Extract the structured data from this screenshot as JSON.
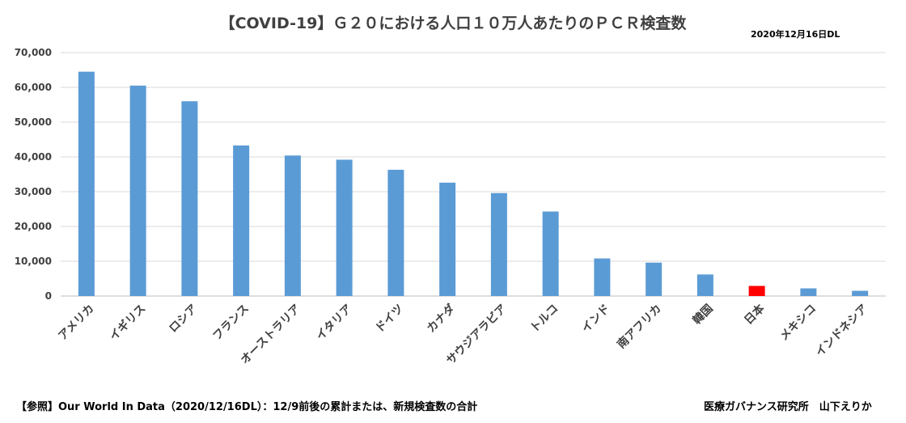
{
  "chart_data": {
    "type": "bar",
    "title": "【COVID-19】Ｇ２０における人口１０万人あたりのＰＣＲ検査数",
    "date_note": "2020年12月16日DL",
    "categories": [
      "アメリカ",
      "イギリス",
      "ロシア",
      "フランス",
      "オーストラリア",
      "イタリア",
      "ドイツ",
      "カナダ",
      "サウジアラビア",
      "トルコ",
      "インド",
      "南アフリカ",
      "韓国",
      "日本",
      "メキシコ",
      "インドネシア"
    ],
    "values": [
      64500,
      60500,
      56000,
      43300,
      40400,
      39200,
      36300,
      32600,
      29600,
      24300,
      10800,
      9600,
      6200,
      2900,
      2200,
      1500
    ],
    "ylim": [
      0,
      70000
    ],
    "yticks": [
      "0",
      "10,000",
      "20,000",
      "30,000",
      "40,000",
      "50,000",
      "60,000",
      "70,000"
    ],
    "grid": true,
    "bar_color": "#5b9bd5",
    "highlight_color": "#ff0000",
    "highlight_category": "日本"
  },
  "footer": {
    "source": "【参照】Our World In Data（2020/12/16DL）：12/9前後の累計または、新規検査数の合計",
    "author": "医療ガバナンス研究所　山下えりか"
  }
}
